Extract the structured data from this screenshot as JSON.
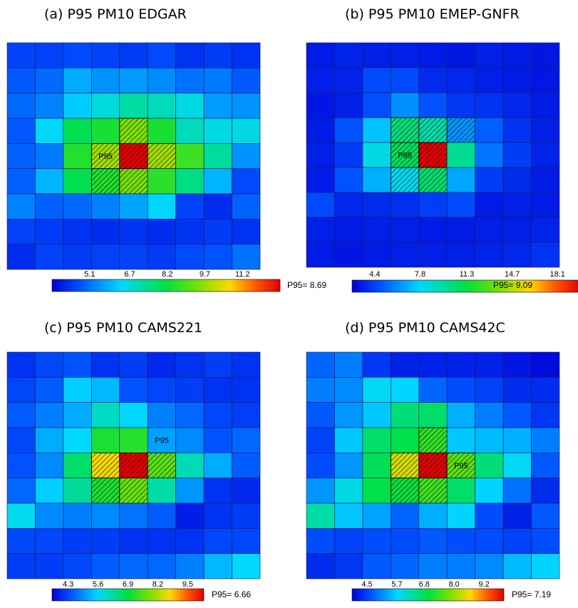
{
  "chart_data": [
    {
      "type": "heatmap",
      "title": "(a)  P95 PM10 EDGAR",
      "p95_label": "P95= 8.69",
      "cell_label": "P95",
      "cell_label_cell": [
        4,
        3
      ],
      "vmin": 3.6,
      "vmax": 12.7,
      "ticks": [
        "5.1",
        "6.7",
        "8.2",
        "9.7",
        "11.2"
      ],
      "tick_values": [
        5.1,
        6.7,
        8.2,
        9.7,
        11.2
      ],
      "values": [
        [
          4.5,
          4.5,
          4.6,
          4.5,
          4.4,
          4.6,
          4.3,
          4.4,
          4.3
        ],
        [
          4.8,
          5.0,
          5.8,
          5.5,
          5.6,
          5.4,
          5.1,
          5.2,
          4.8
        ],
        [
          5.0,
          5.3,
          6.2,
          6.7,
          7.2,
          7.0,
          6.6,
          5.6,
          5.5
        ],
        [
          4.8,
          6.4,
          8.0,
          8.4,
          9.5,
          8.4,
          7.0,
          6.6,
          6.6
        ],
        [
          4.9,
          5.2,
          8.5,
          9.8,
          12.7,
          9.8,
          8.8,
          7.3,
          5.5
        ],
        [
          4.9,
          5.9,
          8.0,
          8.5,
          9.4,
          8.6,
          7.5,
          5.9,
          4.6
        ],
        [
          5.3,
          4.9,
          5.0,
          5.3,
          5.7,
          6.3,
          4.5,
          4.2,
          4.9
        ],
        [
          4.5,
          4.4,
          4.3,
          4.2,
          4.3,
          4.2,
          4.3,
          4.4,
          4.3
        ],
        [
          4.2,
          4.5,
          4.4,
          4.5,
          4.5,
          4.4,
          4.6,
          4.7,
          5.1
        ]
      ],
      "hatched": [
        [
          4,
          3
        ],
        [
          4,
          4
        ],
        [
          5,
          3
        ],
        [
          3,
          4
        ],
        [
          5,
          4
        ],
        [
          4,
          5
        ]
      ]
    },
    {
      "type": "heatmap",
      "title": "(b)  P95 PM10 EMEP-GNFR",
      "p95_label": "P95= 9.09",
      "cell_label": "P95",
      "cell_label_cell": [
        4,
        3
      ],
      "vmin": 2.7,
      "vmax": 19.8,
      "ticks": [
        "4.4",
        "7.8",
        "11.3",
        "14.7",
        "18.1"
      ],
      "tick_values": [
        4.4,
        7.8,
        11.3,
        14.7,
        18.1
      ],
      "values": [
        [
          3.4,
          3.6,
          3.5,
          3.5,
          3.4,
          3.3,
          3.5,
          3.4,
          3.3
        ],
        [
          3.5,
          3.6,
          4.6,
          4.6,
          3.8,
          3.7,
          3.5,
          3.4,
          3.3
        ],
        [
          3.3,
          3.5,
          4.7,
          6.2,
          4.8,
          4.1,
          4.0,
          3.7,
          3.4
        ],
        [
          3.4,
          4.8,
          7.3,
          10.2,
          9.4,
          6.3,
          5.1,
          4.0,
          3.5
        ],
        [
          3.5,
          4.2,
          8.3,
          10.8,
          19.8,
          9.8,
          5.6,
          4.3,
          3.6
        ],
        [
          3.4,
          4.8,
          6.9,
          8.1,
          10.4,
          6.7,
          4.3,
          3.8,
          3.4
        ],
        [
          4.6,
          3.7,
          3.8,
          3.9,
          4.3,
          4.6,
          3.4,
          3.5,
          3.4
        ],
        [
          3.5,
          3.4,
          3.5,
          3.5,
          3.4,
          3.4,
          3.5,
          3.5,
          3.6
        ],
        [
          3.4,
          3.3,
          3.4,
          3.5,
          3.5,
          3.5,
          3.6,
          3.7,
          4.0
        ]
      ],
      "hatched": [
        [
          4,
          3
        ],
        [
          4,
          4
        ],
        [
          5,
          3
        ],
        [
          3,
          4
        ],
        [
          3,
          3
        ],
        [
          5,
          4
        ],
        [
          3,
          5
        ]
      ]
    },
    {
      "type": "heatmap",
      "title": "(c)  P95 PM10 CAMS221",
      "p95_label": "P95= 6.66",
      "cell_label": "P95",
      "cell_label_cell": [
        3,
        5
      ],
      "vmin": 3.6,
      "vmax": 10.2,
      "ticks": [
        "4.3",
        "5.6",
        "6.9",
        "8.2",
        "9.5"
      ],
      "tick_values": [
        4.3,
        5.6,
        6.9,
        8.2,
        9.5
      ],
      "values": [
        [
          4.1,
          4.3,
          4.4,
          4.1,
          4.2,
          4.0,
          4.1,
          4.2,
          4.1
        ],
        [
          4.3,
          4.5,
          5.5,
          5.3,
          4.4,
          4.3,
          4.2,
          4.1,
          4.1
        ],
        [
          4.5,
          4.8,
          5.2,
          6.0,
          5.6,
          4.8,
          4.6,
          4.3,
          4.2
        ],
        [
          4.3,
          5.2,
          5.6,
          7.1,
          7.2,
          5.1,
          4.9,
          4.4,
          4.6
        ],
        [
          4.4,
          4.9,
          6.6,
          8.7,
          10.2,
          7.6,
          6.1,
          5.2,
          4.5
        ],
        [
          4.6,
          5.5,
          6.3,
          7.1,
          7.7,
          6.2,
          5.0,
          4.1,
          4.0
        ],
        [
          5.7,
          4.9,
          4.8,
          4.9,
          4.7,
          4.5,
          3.9,
          4.1,
          4.2
        ],
        [
          4.3,
          4.3,
          4.2,
          4.2,
          4.1,
          4.1,
          4.1,
          4.3,
          4.3
        ],
        [
          4.2,
          4.2,
          4.3,
          4.5,
          4.6,
          4.6,
          4.8,
          5.3,
          5.6
        ]
      ],
      "hatched": [
        [
          4,
          3
        ],
        [
          4,
          4
        ],
        [
          5,
          3
        ],
        [
          4,
          5
        ],
        [
          5,
          4
        ]
      ]
    },
    {
      "type": "heatmap",
      "title": "(d)  P95 PM10 CAMS42C",
      "p95_label": "P95= 7.19",
      "cell_label": "P95",
      "cell_label_cell": [
        4,
        5
      ],
      "vmin": 3.9,
      "vmax": 10.0,
      "ticks": [
        "4.5",
        "5.7",
        "6.8",
        "8.0",
        "9.2"
      ],
      "tick_values": [
        4.5,
        5.7,
        6.8,
        8.0,
        9.2
      ],
      "values": [
        [
          4.8,
          5.0,
          4.4,
          4.2,
          4.2,
          4.2,
          4.2,
          4.1,
          4.0
        ],
        [
          5.0,
          5.1,
          5.8,
          5.7,
          4.8,
          4.6,
          4.5,
          4.3,
          4.3
        ],
        [
          4.7,
          5.2,
          5.6,
          6.6,
          6.7,
          5.4,
          5.0,
          4.7,
          4.4
        ],
        [
          4.5,
          5.6,
          6.7,
          6.9,
          7.3,
          5.6,
          5.5,
          5.4,
          5.0
        ],
        [
          4.6,
          5.2,
          6.8,
          8.4,
          10.0,
          7.6,
          6.6,
          5.8,
          4.7
        ],
        [
          5.2,
          5.9,
          6.9,
          7.0,
          7.4,
          6.7,
          5.7,
          4.9,
          4.3
        ],
        [
          6.3,
          5.6,
          5.3,
          4.8,
          5.4,
          5.7,
          4.6,
          4.2,
          4.7
        ],
        [
          4.6,
          4.5,
          4.6,
          4.6,
          4.7,
          4.6,
          4.6,
          4.5,
          4.6
        ],
        [
          4.3,
          4.4,
          4.7,
          4.8,
          5.0,
          5.0,
          5.1,
          5.5,
          5.7
        ]
      ],
      "hatched": [
        [
          4,
          3
        ],
        [
          4,
          4
        ],
        [
          5,
          3
        ],
        [
          3,
          4
        ],
        [
          5,
          4
        ],
        [
          4,
          5
        ]
      ]
    }
  ]
}
